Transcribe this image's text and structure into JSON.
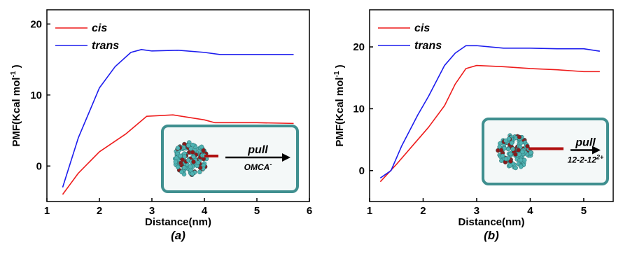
{
  "chart_data": [
    {
      "type": "line",
      "caption": "(a)",
      "x_label": "Distance(nm)",
      "y_label": "PMF(Kcal mol",
      "y_label_sup": "-1",
      "y_label_end": " )",
      "xlim": [
        1,
        6
      ],
      "xticks": [
        1,
        2,
        3,
        4,
        5,
        6
      ],
      "ylim": [
        -5,
        22
      ],
      "yticks": [
        0,
        10,
        20
      ],
      "inset_action": "pull",
      "inset_label": "OMCA",
      "inset_label_sup": "-",
      "series": [
        {
          "name": "cis",
          "color": "#ee1c1c",
          "x": [
            1.3,
            1.6,
            2.0,
            2.2,
            2.5,
            2.9,
            3.4,
            4.0,
            4.2,
            5.0,
            5.7
          ],
          "values": [
            -4,
            -1,
            2,
            3,
            4.5,
            7,
            7.2,
            6.5,
            6.1,
            6.1,
            6
          ]
        },
        {
          "name": "trans",
          "color": "#1c1cee",
          "x": [
            1.3,
            1.6,
            2.0,
            2.3,
            2.6,
            2.8,
            3.0,
            3.5,
            4.0,
            4.3,
            5.7
          ],
          "values": [
            -3,
            4,
            11,
            14,
            16,
            16.4,
            16.2,
            16.3,
            16,
            15.7,
            15.7
          ]
        }
      ]
    },
    {
      "type": "line",
      "caption": "(b)",
      "x_label": "Distance(nm)",
      "y_label": "PMF(Kcal mol",
      "y_label_sup": "-1",
      "y_label_end": " )",
      "xlim": [
        1,
        5.55
      ],
      "xticks": [
        1,
        2,
        3,
        4,
        5
      ],
      "ylim": [
        -5,
        26
      ],
      "yticks": [
        0,
        10,
        20
      ],
      "inset_action": "pull",
      "inset_label": "12-2-12",
      "inset_label_sup": "2+",
      "series": [
        {
          "name": "cis",
          "color": "#ee1c1c",
          "x": [
            1.2,
            1.5,
            1.8,
            2.1,
            2.4,
            2.6,
            2.8,
            3.0,
            3.5,
            4.0,
            4.5,
            5.0,
            5.3
          ],
          "values": [
            -1.8,
            1,
            4,
            7,
            10.5,
            14,
            16.5,
            17,
            16.8,
            16.5,
            16.3,
            16,
            16
          ]
        },
        {
          "name": "trans",
          "color": "#1c1cee",
          "x": [
            1.2,
            1.4,
            1.6,
            1.9,
            2.1,
            2.4,
            2.6,
            2.8,
            3.0,
            3.5,
            4.0,
            4.5,
            5.0,
            5.3
          ],
          "values": [
            -1.2,
            0,
            4,
            9,
            12,
            17,
            19,
            20.2,
            20.2,
            19.8,
            19.8,
            19.7,
            19.7,
            19.3
          ]
        }
      ]
    }
  ]
}
